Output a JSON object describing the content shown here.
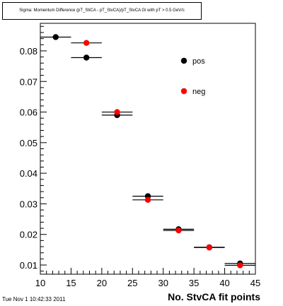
{
  "chart_data": {
    "type": "scatter",
    "title": "Sigma: Momentum Difference (pT_StiCA - pT_StvCA)/pT_StvCA Gl with pT > 0.5 GeV/c",
    "xlabel": "No. StvCA fit points",
    "ylabel": "",
    "xlim": [
      10,
      45
    ],
    "ylim": [
      0.007,
      0.089
    ],
    "x_ticks": [
      "10",
      "15",
      "20",
      "25",
      "30",
      "35",
      "40",
      "45"
    ],
    "y_ticks": [
      "0.01",
      "0.02",
      "0.03",
      "0.04",
      "0.05",
      "0.06",
      "0.07",
      "0.08"
    ],
    "grid": false,
    "legend_position": "top-right",
    "series": [
      {
        "name": "pos",
        "color": "#000000",
        "points": [
          {
            "x": 12.5,
            "y": 0.0845,
            "xerr": 2.5,
            "yerr": 0.0003
          },
          {
            "x": 17.5,
            "y": 0.0778,
            "xerr": 2.5,
            "yerr": 0.0003
          },
          {
            "x": 22.5,
            "y": 0.059,
            "xerr": 2.5,
            "yerr": 0.0003
          },
          {
            "x": 27.5,
            "y": 0.0325,
            "xerr": 2.5,
            "yerr": 0.0003
          },
          {
            "x": 32.5,
            "y": 0.0217,
            "xerr": 2.5,
            "yerr": 0.0003
          },
          {
            "x": 37.5,
            "y": 0.0158,
            "xerr": 2.5,
            "yerr": 0.0003
          },
          {
            "x": 42.5,
            "y": 0.0105,
            "xerr": 2.5,
            "yerr": 0.0003
          }
        ]
      },
      {
        "name": "neg",
        "color": "#ff0000",
        "points": [
          {
            "x": 17.5,
            "y": 0.0826,
            "xerr": 2.5,
            "yerr": 0.0003
          },
          {
            "x": 22.5,
            "y": 0.06,
            "xerr": 2.5,
            "yerr": 0.0003
          },
          {
            "x": 27.5,
            "y": 0.0313,
            "xerr": 2.5,
            "yerr": 0.0003
          },
          {
            "x": 32.5,
            "y": 0.0213,
            "xerr": 2.5,
            "yerr": 0.0003
          },
          {
            "x": 37.5,
            "y": 0.0157,
            "xerr": 2.5,
            "yerr": 0.0003
          },
          {
            "x": 42.5,
            "y": 0.0099,
            "xerr": 2.5,
            "yerr": 0.0003
          }
        ]
      }
    ]
  },
  "footer": {
    "timestamp": "Tue Nov  1 10:42:33 2011"
  }
}
